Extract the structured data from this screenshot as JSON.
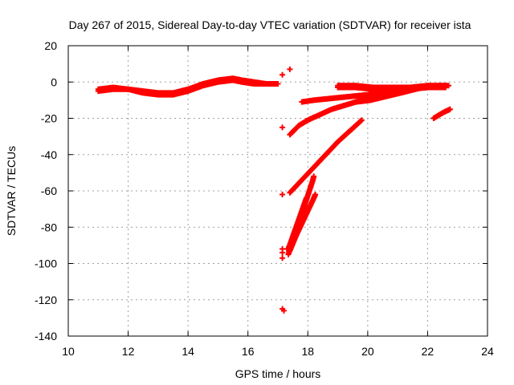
{
  "chart_data": {
    "type": "scatter",
    "title": "Day 267 of 2015, Sidereal Day-to-day VTEC variation (SDTVAR) for receiver ista",
    "xlabel": "GPS time / hours",
    "ylabel": "SDTVAR / TECUs",
    "xlim": [
      10,
      24
    ],
    "ylim": [
      -140,
      20
    ],
    "xticks": [
      10,
      12,
      14,
      16,
      18,
      20,
      22,
      24
    ],
    "yticks": [
      -140,
      -120,
      -100,
      -80,
      -60,
      -40,
      -20,
      0,
      20
    ],
    "grid": true,
    "marker": "plus",
    "color": "#ff0000",
    "series": [
      {
        "x": [
          11.0,
          11.5,
          12.0,
          12.5,
          13.0,
          13.5,
          14.0,
          14.5,
          15.0,
          15.5,
          15.8,
          16.2,
          16.6,
          17.0
        ],
        "y": [
          -5,
          -4,
          -4,
          -5,
          -6,
          -6,
          -4,
          -1,
          1,
          2,
          1,
          0,
          -1,
          -1
        ]
      },
      {
        "x": [
          11.0,
          11.5,
          12.0,
          12.5,
          13.0,
          13.5,
          14.0,
          14.5,
          15.0,
          15.5,
          15.8,
          16.2,
          16.6,
          17.0
        ],
        "y": [
          -4,
          -3,
          -4,
          -6,
          -7,
          -7,
          -5,
          -2,
          0,
          1,
          0,
          -1,
          -1,
          -1
        ]
      },
      {
        "x": [
          17.15,
          17.4
        ],
        "y": [
          4,
          7
        ]
      },
      {
        "x": [
          17.8,
          18.2,
          18.8,
          19.4,
          20.0,
          20.6,
          21.2,
          21.8,
          22.4,
          22.7
        ],
        "y": [
          -11,
          -10,
          -9,
          -8,
          -7,
          -5,
          -4,
          -3,
          -2,
          -2
        ]
      },
      {
        "x": [
          19.0,
          19.6,
          20.2,
          20.8,
          21.4,
          22.0,
          22.6
        ],
        "y": [
          -2,
          -2,
          -3,
          -3,
          -3,
          -2,
          -2
        ]
      },
      {
        "x": [
          19.0,
          19.6,
          20.2,
          20.8,
          21.4,
          22.0,
          22.6
        ],
        "y": [
          -3,
          -3,
          -4,
          -5,
          -4,
          -3,
          -3
        ]
      },
      {
        "x": [
          19.6,
          20.1,
          20.6,
          21.1,
          21.6,
          22.0
        ],
        "y": [
          -11,
          -10,
          -8,
          -6,
          -4,
          -2
        ]
      },
      {
        "x": [
          17.4,
          17.7,
          18.0,
          18.4,
          18.8,
          19.2,
          19.6,
          20.0,
          20.4,
          20.8
        ],
        "y": [
          -29,
          -24,
          -21,
          -18,
          -15,
          -13,
          -11,
          -9,
          -7,
          -5
        ]
      },
      {
        "x": [
          22.2,
          22.5,
          22.75
        ],
        "y": [
          -20,
          -17,
          -15
        ]
      },
      {
        "x": [
          17.4,
          17.8,
          18.2,
          18.6,
          19.0,
          19.4,
          19.8
        ],
        "y": [
          -61,
          -54,
          -47,
          -40,
          -33,
          -27,
          -21
        ]
      },
      {
        "x": [
          17.35,
          17.55,
          17.75,
          17.95,
          18.15,
          18.2
        ],
        "y": [
          -95,
          -85,
          -75,
          -65,
          -55,
          -52
        ]
      },
      {
        "x": [
          17.4,
          17.6,
          17.8,
          18.0,
          18.2,
          18.25
        ],
        "y": [
          -93,
          -85,
          -78,
          -71,
          -64,
          -62
        ]
      },
      {
        "x": [
          17.35,
          17.5,
          17.65,
          17.8,
          17.95
        ],
        "y": [
          -92,
          -85,
          -78,
          -71,
          -64
        ]
      },
      {
        "x": [
          17.15,
          17.15,
          17.15,
          17.15,
          17.15,
          17.15,
          17.3,
          17.2
        ],
        "y": [
          -25,
          -62,
          -92,
          -94,
          -97,
          -125,
          -92,
          -126
        ]
      }
    ]
  }
}
